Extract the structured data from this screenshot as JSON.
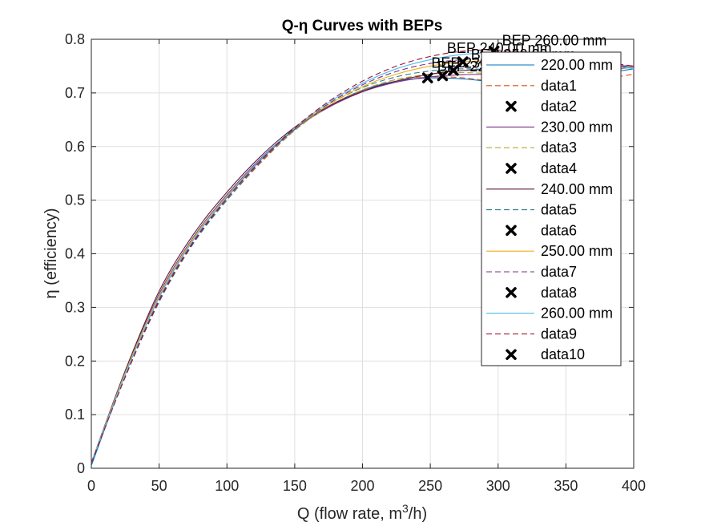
{
  "chart_data": {
    "type": "line",
    "title": "Q-η Curves with BEPs",
    "xlabel": "Q (flow rate, m³/h)",
    "xlabel_parts": {
      "prefix": "Q (flow rate, m",
      "superscript": "3",
      "suffix": "/h)"
    },
    "ylabel": "η (efficiency)",
    "xlim": [
      0,
      400
    ],
    "ylim": [
      0,
      0.8
    ],
    "xticks": [
      0,
      50,
      100,
      150,
      200,
      250,
      300,
      350,
      400
    ],
    "xtick_labels": [
      "0",
      "50",
      "100",
      "150",
      "200",
      "250",
      "300",
      "350",
      "400"
    ],
    "yticks": [
      0,
      0.1,
      0.2,
      0.3,
      0.4,
      0.5,
      0.6,
      0.7,
      0.8
    ],
    "ytick_labels": [
      "0",
      "0.1",
      "0.2",
      "0.3",
      "0.4",
      "0.5",
      "0.6",
      "0.7",
      "0.8"
    ],
    "grid": true,
    "legend_position": "top-right",
    "series": [
      {
        "name": "220.00 mm",
        "style": "solid",
        "color": "#0072bd",
        "x": [
          0,
          25,
          50,
          75,
          100,
          125,
          150,
          175,
          200,
          225,
          250,
          275,
          300,
          325,
          350,
          375,
          400
        ],
        "y": [
          0.005,
          0.175,
          0.32,
          0.425,
          0.505,
          0.575,
          0.632,
          0.675,
          0.705,
          0.722,
          0.728,
          0.726,
          0.72,
          0.72,
          0.725,
          0.735,
          0.745
        ]
      },
      {
        "name": "data1",
        "style": "dashed",
        "color": "#d95319",
        "x": [
          0,
          25,
          50,
          75,
          100,
          125,
          150,
          175,
          200,
          225,
          250,
          275,
          300,
          325,
          350,
          375,
          400
        ],
        "y": [
          0.01,
          0.18,
          0.315,
          0.42,
          0.5,
          0.57,
          0.63,
          0.675,
          0.705,
          0.725,
          0.73,
          0.728,
          0.72,
          0.715,
          0.718,
          0.725,
          0.735
        ]
      },
      {
        "name": "data2",
        "type": "marker",
        "marker": "x",
        "x": [
          248
        ],
        "y": [
          0.728
        ],
        "label": "BEP 220.00 mm"
      },
      {
        "name": "230.00 mm",
        "style": "solid",
        "color": "#7e2f8e",
        "x": [
          0,
          25,
          50,
          75,
          100,
          125,
          150,
          175,
          200,
          225,
          250,
          275,
          300,
          325,
          350,
          375,
          400
        ],
        "y": [
          0.01,
          0.18,
          0.325,
          0.43,
          0.51,
          0.578,
          0.633,
          0.673,
          0.702,
          0.72,
          0.73,
          0.734,
          0.735,
          0.736,
          0.738,
          0.742,
          0.748
        ]
      },
      {
        "name": "data3",
        "style": "dashed",
        "color": "#b2a93b",
        "x": [
          0,
          25,
          50,
          75,
          100,
          125,
          150,
          175,
          200,
          225,
          250,
          275,
          300,
          325,
          350,
          375,
          400
        ],
        "y": [
          0.01,
          0.178,
          0.32,
          0.426,
          0.505,
          0.573,
          0.63,
          0.675,
          0.706,
          0.725,
          0.735,
          0.738,
          0.735,
          0.733,
          0.735,
          0.74,
          0.748
        ]
      },
      {
        "name": "data4",
        "type": "marker",
        "marker": "x",
        "x": [
          259
        ],
        "y": [
          0.732
        ],
        "label": "BEP 230.00 mm"
      },
      {
        "name": "240.00 mm",
        "style": "solid",
        "color": "#5b1f3f",
        "x": [
          0,
          25,
          50,
          75,
          100,
          125,
          150,
          175,
          200,
          225,
          250,
          275,
          300,
          325,
          350,
          375,
          400
        ],
        "y": [
          0.01,
          0.182,
          0.33,
          0.435,
          0.515,
          0.582,
          0.636,
          0.675,
          0.703,
          0.722,
          0.735,
          0.742,
          0.745,
          0.746,
          0.747,
          0.748,
          0.75
        ]
      },
      {
        "name": "data5",
        "style": "dashed",
        "color": "#2a7f8f",
        "x": [
          0,
          25,
          50,
          75,
          100,
          125,
          150,
          175,
          200,
          225,
          250,
          275,
          300,
          325,
          350,
          375,
          400
        ],
        "y": [
          0.01,
          0.17,
          0.31,
          0.418,
          0.5,
          0.572,
          0.632,
          0.678,
          0.71,
          0.73,
          0.741,
          0.745,
          0.742,
          0.738,
          0.74,
          0.745,
          0.75
        ]
      },
      {
        "name": "data6",
        "type": "marker",
        "marker": "x",
        "x": [
          267
        ],
        "y": [
          0.742
        ],
        "label": "BEP 240.00 mm"
      },
      {
        "name": "250.00 mm",
        "style": "solid",
        "color": "#edb120",
        "x": [
          0,
          25,
          50,
          75,
          100,
          125,
          150,
          175,
          200,
          225,
          250,
          275,
          300,
          325,
          350,
          375,
          400
        ],
        "y": [
          0.01,
          0.178,
          0.322,
          0.428,
          0.508,
          0.576,
          0.634,
          0.678,
          0.712,
          0.735,
          0.75,
          0.758,
          0.76,
          0.758,
          0.755,
          0.752,
          0.75
        ]
      },
      {
        "name": "data7",
        "style": "dashed",
        "color": "#7e2f8e",
        "x": [
          0,
          25,
          50,
          75,
          100,
          125,
          150,
          175,
          200,
          225,
          250,
          275,
          300,
          325,
          350,
          375,
          400
        ],
        "y": [
          0.01,
          0.172,
          0.315,
          0.422,
          0.504,
          0.574,
          0.634,
          0.68,
          0.715,
          0.74,
          0.755,
          0.762,
          0.762,
          0.758,
          0.754,
          0.752,
          0.75
        ]
      },
      {
        "name": "data8",
        "type": "marker",
        "marker": "x",
        "x": [
          274
        ],
        "y": [
          0.758
        ],
        "label": "BEP 250.00 mm"
      },
      {
        "name": "260.00 mm",
        "style": "solid",
        "color": "#4dbeee",
        "x": [
          0,
          25,
          50,
          75,
          100,
          125,
          150,
          175,
          200,
          225,
          250,
          275,
          300,
          325,
          350,
          375,
          400
        ],
        "y": [
          0.01,
          0.175,
          0.318,
          0.425,
          0.506,
          0.576,
          0.635,
          0.682,
          0.718,
          0.745,
          0.762,
          0.772,
          0.775,
          0.772,
          0.765,
          0.755,
          0.745
        ]
      },
      {
        "name": "data9",
        "style": "dashed",
        "color": "#a2142f",
        "x": [
          0,
          25,
          50,
          75,
          100,
          125,
          150,
          175,
          200,
          225,
          250,
          275,
          300,
          325,
          350,
          375,
          400
        ],
        "y": [
          0.01,
          0.17,
          0.312,
          0.42,
          0.503,
          0.574,
          0.635,
          0.684,
          0.722,
          0.75,
          0.768,
          0.778,
          0.78,
          0.775,
          0.766,
          0.758,
          0.75
        ]
      },
      {
        "name": "data10",
        "type": "marker",
        "marker": "x",
        "x": [
          297
        ],
        "y": [
          0.778
        ],
        "label": "BEP 260.00 mm"
      }
    ],
    "legend_entries": [
      {
        "label": "220.00 mm",
        "kind": "solid",
        "color": "#0072bd"
      },
      {
        "label": "data1",
        "kind": "dashed",
        "color": "#d95319"
      },
      {
        "label": "data2",
        "kind": "marker",
        "color": "#000000"
      },
      {
        "label": "230.00 mm",
        "kind": "solid",
        "color": "#7e2f8e"
      },
      {
        "label": "data3",
        "kind": "dashed",
        "color": "#b2a93b"
      },
      {
        "label": "data4",
        "kind": "marker",
        "color": "#000000"
      },
      {
        "label": "240.00 mm",
        "kind": "solid",
        "color": "#5b1f3f"
      },
      {
        "label": "data5",
        "kind": "dashed",
        "color": "#2a7f8f"
      },
      {
        "label": "data6",
        "kind": "marker",
        "color": "#000000"
      },
      {
        "label": "250.00 mm",
        "kind": "solid",
        "color": "#edb120"
      },
      {
        "label": "data7",
        "kind": "dashed",
        "color": "#7e2f8e"
      },
      {
        "label": "data8",
        "kind": "marker",
        "color": "#000000"
      },
      {
        "label": "260.00 mm",
        "kind": "solid",
        "color": "#4dbeee"
      },
      {
        "label": "data9",
        "kind": "dashed",
        "color": "#a2142f"
      },
      {
        "label": "data10",
        "kind": "marker",
        "color": "#000000"
      }
    ]
  }
}
